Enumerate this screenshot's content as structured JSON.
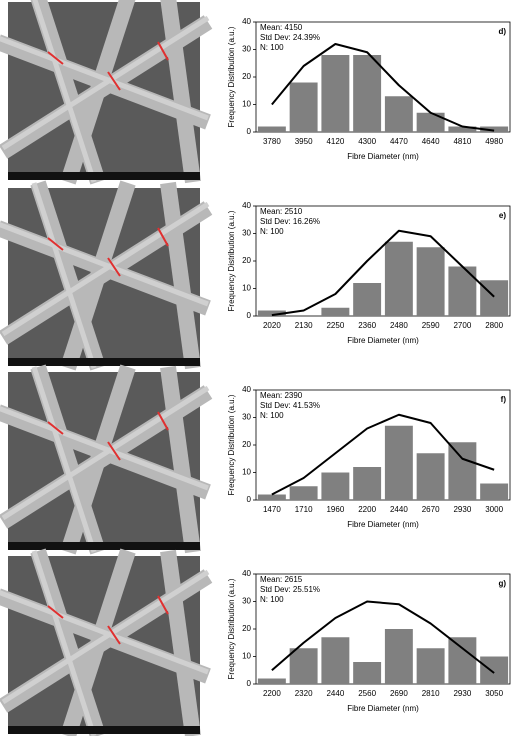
{
  "chart_data": [
    {
      "type": "bar",
      "panel": "d)",
      "annotations": [
        "Mean: 4150",
        "Std Dev: 24.39%",
        "N: 100"
      ],
      "xlabel": "Fibre Diameter (nm)",
      "ylabel": "Frequency Distribution (a.u.)",
      "categories": [
        "3780",
        "3950",
        "4120",
        "4300",
        "4470",
        "4640",
        "4810",
        "4980"
      ],
      "values": [
        2,
        18,
        28,
        28,
        13,
        7,
        2,
        2
      ],
      "fit_values": [
        10,
        24,
        32,
        29,
        17,
        7,
        2,
        0.5
      ],
      "color": "#808080",
      "fit_color": "#000000",
      "ylim": [
        0,
        40
      ],
      "yticks": [
        0,
        10,
        20,
        30,
        40
      ]
    },
    {
      "type": "bar",
      "panel": "e)",
      "annotations": [
        "Mean: 2510",
        "Std Dev: 16.26%",
        "N: 100"
      ],
      "xlabel": "Fibre Diameter (nm)",
      "ylabel": "Frequency Distribution (a.u.)",
      "categories": [
        "2020",
        "2130",
        "2250",
        "2360",
        "2480",
        "2590",
        "2700",
        "2800"
      ],
      "values": [
        2,
        0,
        3,
        12,
        27,
        25,
        18,
        13
      ],
      "fit_values": [
        0.3,
        2,
        8,
        20,
        31,
        29,
        18,
        7
      ],
      "color": "#808080",
      "fit_color": "#000000",
      "ylim": [
        0,
        40
      ],
      "yticks": [
        0,
        10,
        20,
        30,
        40
      ]
    },
    {
      "type": "bar",
      "panel": "f)",
      "annotations": [
        "Mean: 2390",
        "Std Dev: 41.53%",
        "N: 100"
      ],
      "xlabel": "Fibre Diameter (nm)",
      "ylabel": "Frequency Distribution (a.u.)",
      "categories": [
        "1470",
        "1710",
        "1960",
        "2200",
        "2440",
        "2670",
        "2930",
        "3000"
      ],
      "values": [
        2,
        5,
        10,
        12,
        27,
        17,
        21,
        6
      ],
      "fit_values": [
        2,
        8,
        17,
        26,
        31,
        28,
        15,
        11
      ],
      "color": "#808080",
      "fit_color": "#000000",
      "ylim": [
        0,
        40
      ],
      "yticks": [
        0,
        10,
        20,
        30,
        40
      ]
    },
    {
      "type": "bar",
      "panel": "g)",
      "annotations": [
        "Mean: 2615",
        "Std Dev: 25.51%",
        "N: 100"
      ],
      "xlabel": "Fibre Diameter (nm)",
      "ylabel": "Frequency Distribution (a.u.)",
      "categories": [
        "2200",
        "2320",
        "2440",
        "2560",
        "2690",
        "2810",
        "2930",
        "3050"
      ],
      "values": [
        2,
        13,
        17,
        8,
        20,
        13,
        17,
        10
      ],
      "fit_values": [
        5,
        15,
        24,
        30,
        29,
        22,
        13,
        4
      ],
      "color": "#808080",
      "fit_color": "#000000",
      "ylim": [
        0,
        40
      ],
      "yticks": [
        0,
        10,
        20,
        30,
        40
      ]
    }
  ]
}
